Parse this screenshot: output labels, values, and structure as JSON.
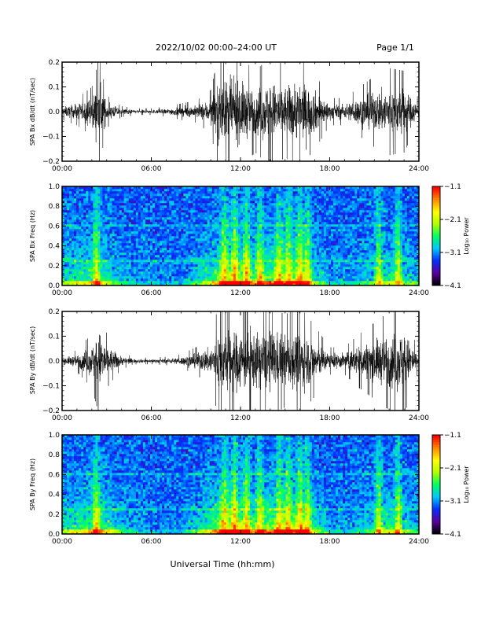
{
  "header": {
    "title": "2022/10/02  00:00–24:00 UT",
    "page": "Page 1/1"
  },
  "xlabel": "Universal Time (hh:mm)",
  "colorbar": {
    "label": "Log₁₀ Power",
    "ticks": [
      -4.1,
      -3.1,
      -2.1,
      -1.1
    ],
    "tick_labels": [
      "−4.1",
      "−3.1",
      "−2.1",
      "−1.1"
    ],
    "range": [
      -4.1,
      -1.1
    ],
    "colormap": "rainbow",
    "colors": [
      "#000000",
      "#5a00a0",
      "#0030ff",
      "#00c8ff",
      "#00ff60",
      "#b0ff00",
      "#ffff00",
      "#ff8800",
      "#ff0000"
    ]
  },
  "chart_data": [
    {
      "type": "line",
      "ylabel": "SPA Bx dB/dt (nT/sec)",
      "xlim": [
        0,
        24
      ],
      "ylim": [
        -0.2,
        0.2
      ],
      "x_ticks": [
        "00:00",
        "06:00",
        "12:00",
        "18:00",
        "24:00"
      ],
      "y_ticks": [
        -0.2,
        -0.1,
        0.0,
        0.1,
        0.2
      ],
      "y_tick_labels": [
        "−0.2",
        "−0.1",
        "0.0",
        "0.1",
        "0.2"
      ],
      "series": [
        {
          "x": [
            0,
            1,
            2,
            2.5,
            3,
            4,
            5,
            6,
            7,
            8,
            9,
            10,
            10.5,
            11,
            12,
            13,
            14,
            15,
            16,
            17,
            18,
            19,
            20,
            21,
            22,
            23,
            24
          ],
          "amplitude": [
            0.03,
            0.05,
            0.09,
            0.2,
            0.06,
            0.02,
            0.012,
            0.012,
            0.018,
            0.03,
            0.04,
            0.08,
            0.2,
            0.2,
            0.2,
            0.15,
            0.2,
            0.17,
            0.2,
            0.14,
            0.05,
            0.05,
            0.09,
            0.13,
            0.16,
            0.15,
            0.04
          ]
        }
      ]
    },
    {
      "type": "heatmap",
      "ylabel": "SPA Bx Freq (Hz)",
      "xlim": [
        0,
        24
      ],
      "ylim": [
        0.0,
        1.0
      ],
      "x_ticks": [
        "00:00",
        "06:00",
        "12:00",
        "18:00",
        "24:00"
      ],
      "y_ticks": [
        0.0,
        0.2,
        0.4,
        0.6,
        0.8,
        1.0
      ],
      "y_tick_labels": [
        "0.0",
        "0.2",
        "0.4",
        "0.6",
        "0.8",
        "1.0"
      ],
      "activity_hours": [
        0,
        2,
        2.5,
        4,
        6,
        8,
        10,
        11,
        12,
        13,
        14,
        15,
        16,
        17,
        18,
        20,
        22,
        24
      ],
      "activity_level": [
        0.35,
        0.5,
        0.55,
        0.2,
        0.1,
        0.1,
        0.45,
        0.75,
        0.8,
        0.55,
        0.7,
        0.65,
        0.75,
        0.35,
        0.15,
        0.2,
        0.4,
        0.25
      ]
    },
    {
      "type": "line",
      "ylabel": "SPA By dB/dt (nT/sec)",
      "xlim": [
        0,
        24
      ],
      "ylim": [
        -0.2,
        0.2
      ],
      "x_ticks": [
        "00:00",
        "06:00",
        "12:00",
        "18:00",
        "24:00"
      ],
      "y_ticks": [
        -0.2,
        -0.1,
        0.0,
        0.1,
        0.2
      ],
      "y_tick_labels": [
        "−0.2",
        "−0.1",
        "0.0",
        "0.1",
        "0.2"
      ],
      "series": [
        {
          "x": [
            0,
            1,
            2,
            2.5,
            3,
            4,
            5,
            6,
            7,
            8,
            9,
            10,
            10.5,
            11,
            12,
            13,
            14,
            15,
            16,
            17,
            18,
            19,
            20,
            21,
            22,
            23,
            24
          ],
          "amplitude": [
            0.02,
            0.04,
            0.1,
            0.2,
            0.1,
            0.03,
            0.012,
            0.012,
            0.015,
            0.025,
            0.05,
            0.09,
            0.2,
            0.2,
            0.2,
            0.18,
            0.2,
            0.17,
            0.2,
            0.13,
            0.05,
            0.05,
            0.1,
            0.14,
            0.18,
            0.2,
            0.03
          ]
        }
      ]
    },
    {
      "type": "heatmap",
      "ylabel": "SPA By Freq (Hz)",
      "xlim": [
        0,
        24
      ],
      "ylim": [
        0.0,
        1.0
      ],
      "x_ticks": [
        "00:00",
        "06:00",
        "12:00",
        "18:00",
        "24:00"
      ],
      "y_ticks": [
        0.0,
        0.2,
        0.4,
        0.6,
        0.8,
        1.0
      ],
      "y_tick_labels": [
        "0.0",
        "0.2",
        "0.4",
        "0.6",
        "0.8",
        "1.0"
      ],
      "activity_hours": [
        0,
        2,
        2.5,
        4,
        6,
        8,
        10,
        11,
        12,
        13,
        14,
        15,
        16,
        17,
        18,
        20,
        22,
        24
      ],
      "activity_level": [
        0.35,
        0.55,
        0.6,
        0.25,
        0.1,
        0.1,
        0.5,
        0.8,
        0.8,
        0.55,
        0.7,
        0.65,
        0.8,
        0.4,
        0.15,
        0.2,
        0.45,
        0.25
      ]
    }
  ]
}
